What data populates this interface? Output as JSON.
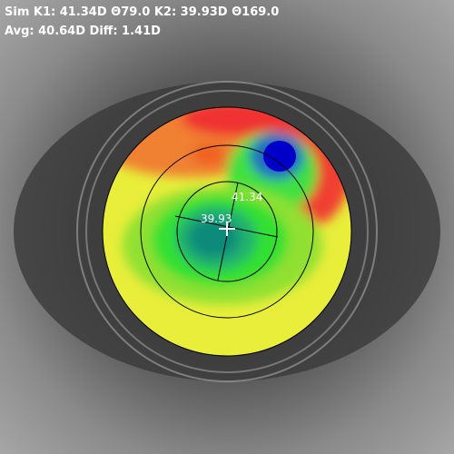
{
  "header": {
    "line1": "Sim K1: 41.34D Θ79.0 K2: 39.93D Θ169.0",
    "line2": "Avg: 40.64D Diff: 1.41D"
  },
  "labels": {
    "k1": "41.34",
    "k2": "39.93"
  }
}
